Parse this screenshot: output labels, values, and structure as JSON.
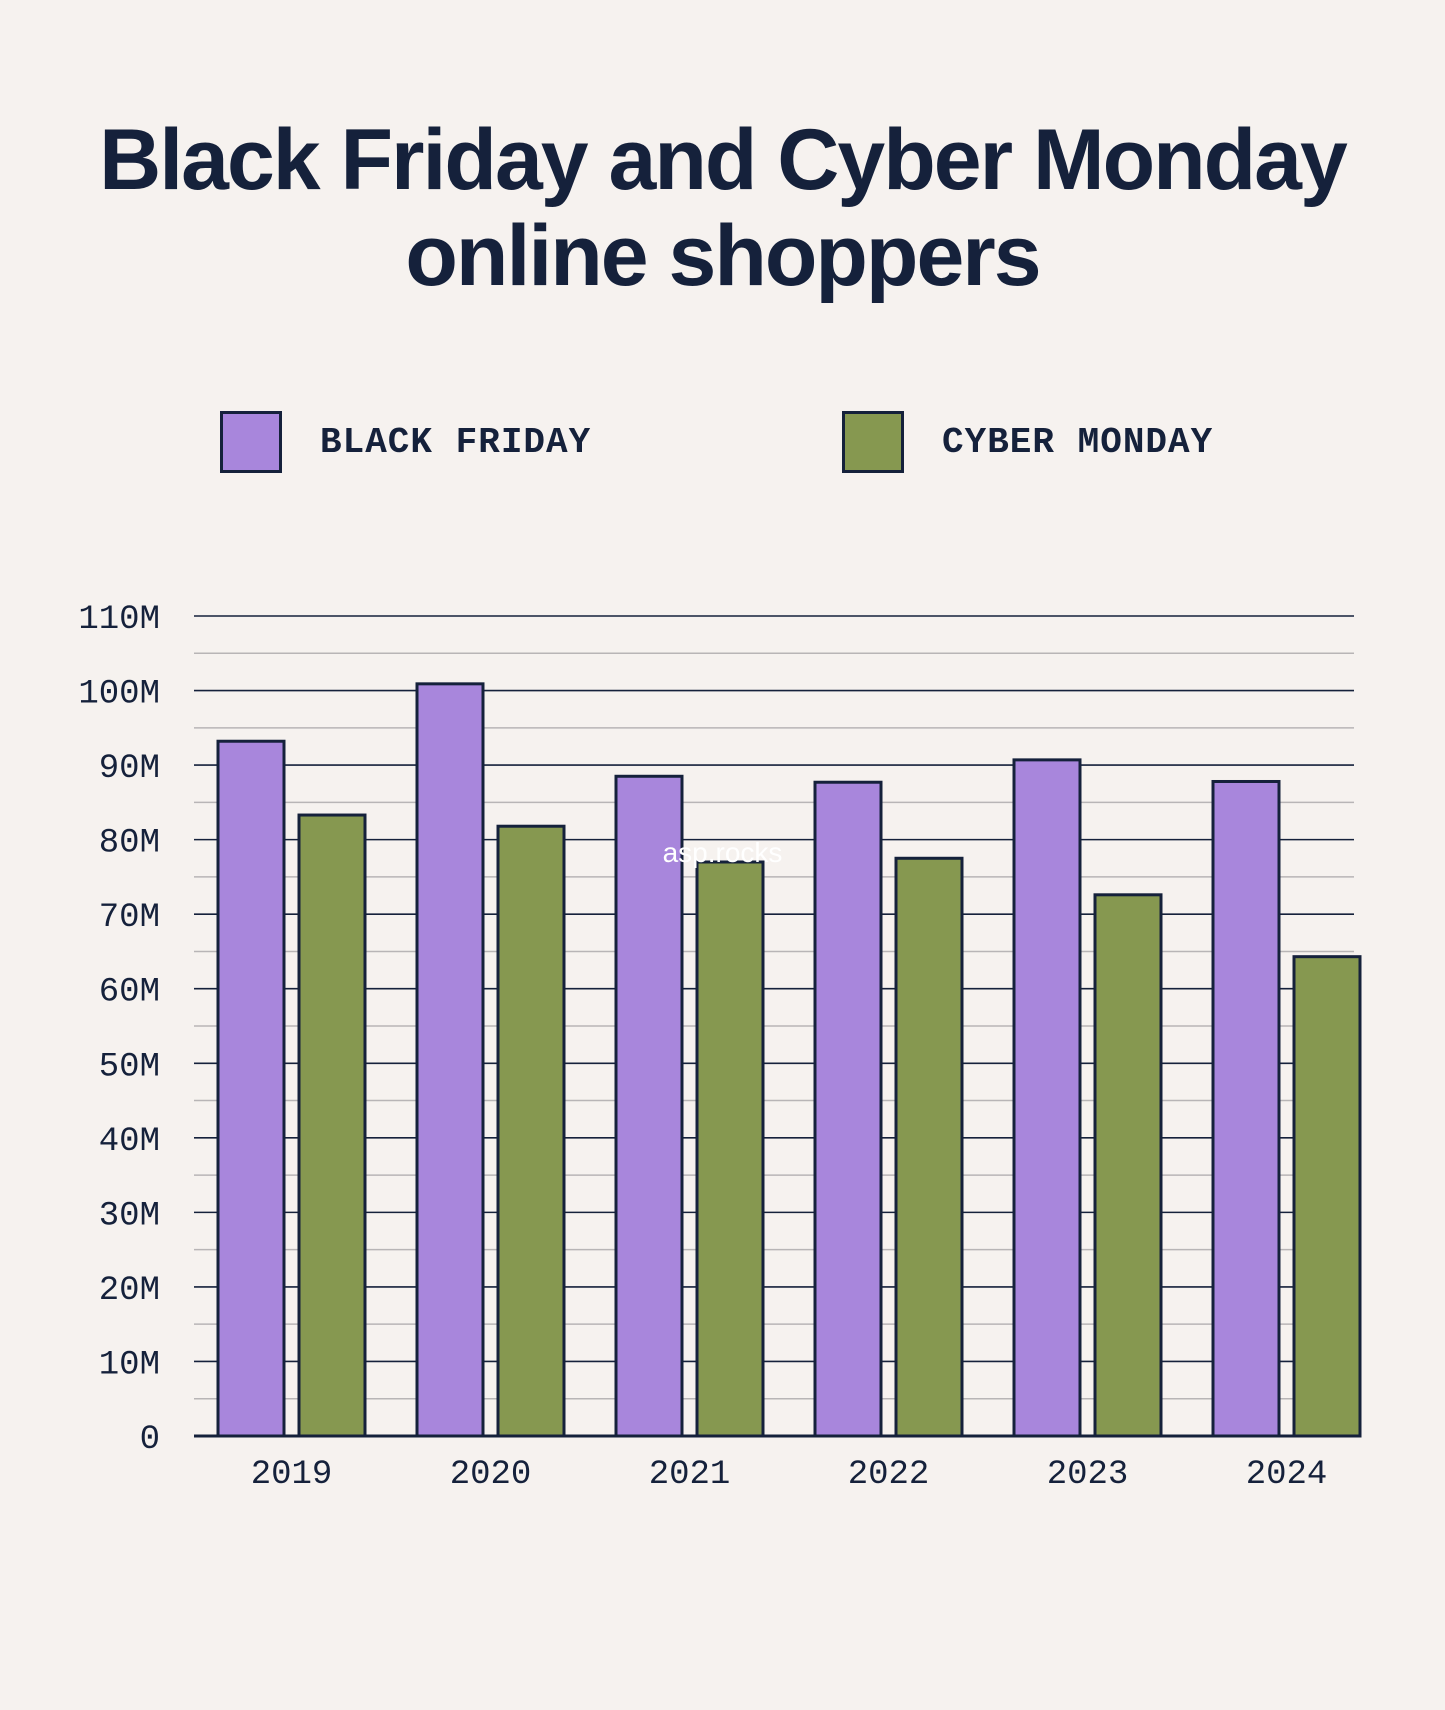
{
  "colors": {
    "background": "#f6f2ef",
    "text": "#15213b",
    "black_friday": "#a886dc",
    "cyber_monday": "#869850"
  },
  "watermark": "asp.rocks",
  "chart_data": {
    "type": "bar",
    "title": "Black Friday and Cyber Monday online shoppers",
    "categories": [
      "2019",
      "2020",
      "2021",
      "2022",
      "2023",
      "2024"
    ],
    "series": [
      {
        "name": "BLACK FRIDAY",
        "color": "#a886dc",
        "values": [
          93.2,
          100.9,
          88.5,
          87.7,
          90.7,
          87.8
        ]
      },
      {
        "name": "CYBER MONDAY",
        "color": "#869850",
        "values": [
          83.3,
          81.8,
          77.0,
          77.5,
          72.6,
          64.3
        ]
      }
    ],
    "ylim": [
      0,
      110
    ],
    "yticks": [
      "0",
      "10M",
      "20M",
      "30M",
      "40M",
      "50M",
      "60M",
      "70M",
      "80M",
      "90M",
      "100M",
      "110M"
    ],
    "legend_position": "top",
    "grid": true
  }
}
